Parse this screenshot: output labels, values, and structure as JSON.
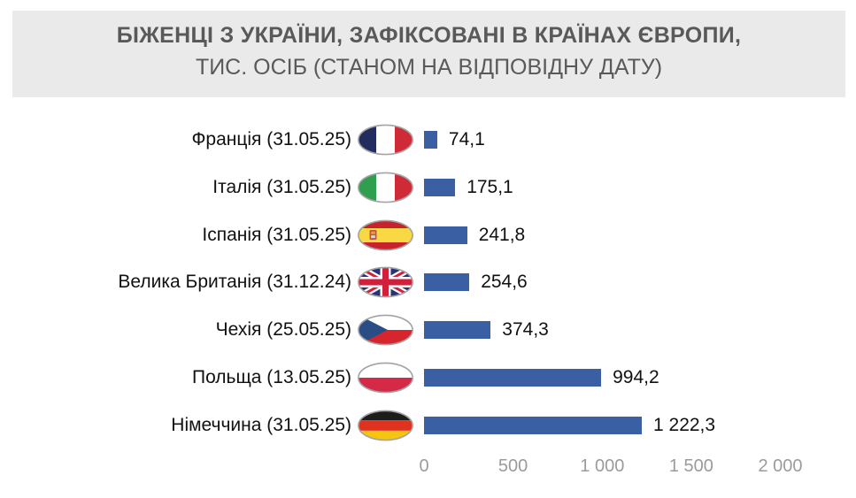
{
  "header": {
    "title_line1": "БІЖЕНЦІ З УКРАЇНИ, ЗАФІКСОВАНІ В КРАЇНАХ ЄВРОПИ,",
    "title_line2": "ТИС. ОСІБ (СТАНОМ НА ВІДПОВІДНУ ДАТУ)"
  },
  "chart_data": {
    "type": "bar",
    "orientation": "horizontal",
    "title": "БІЖЕНЦІ З УКРАЇНИ, ЗАФІКСОВАНІ В КРАЇНАХ ЄВРОПИ, ТИС. ОСІБ (СТАНОМ НА ВІДПОВІДНУ ДАТУ)",
    "unit": "тис. осіб",
    "categories": [
      "Франція (31.05.25)",
      "Італія (31.05.25)",
      "Іспанія (31.05.25)",
      "Велика Британія (31.12.24)",
      "Чехія (25.05.25)",
      "Польща (13.05.25)",
      "Німеччина (31.05.25)"
    ],
    "values": [
      74.1,
      175.1,
      241.8,
      254.6,
      374.3,
      994.2,
      1222.3
    ],
    "value_labels": [
      "74,1",
      "175,1",
      "241,8",
      "254,6",
      "374,3",
      "994,2",
      "1 222,3"
    ],
    "flags": [
      "flag-france",
      "flag-italy",
      "flag-spain",
      "flag-uk",
      "flag-czechia",
      "flag-poland",
      "flag-germany"
    ],
    "xlim": [
      0,
      2000
    ],
    "x_ticks": [
      {
        "label": "0",
        "value": 0
      },
      {
        "label": "500",
        "value": 500
      },
      {
        "label": "1 000",
        "value": 1000
      },
      {
        "label": "1 500",
        "value": 1500
      },
      {
        "label": "2 000",
        "value": 2000
      }
    ],
    "bar_color": "#3A5FA3",
    "grid": false,
    "legend": "none"
  },
  "colors": {
    "title_bg": "#EAEAEA",
    "title_text": "#595959",
    "axis_text": "#9B9B9B",
    "value_text": "#111111",
    "bar": "#3A5FA3"
  }
}
